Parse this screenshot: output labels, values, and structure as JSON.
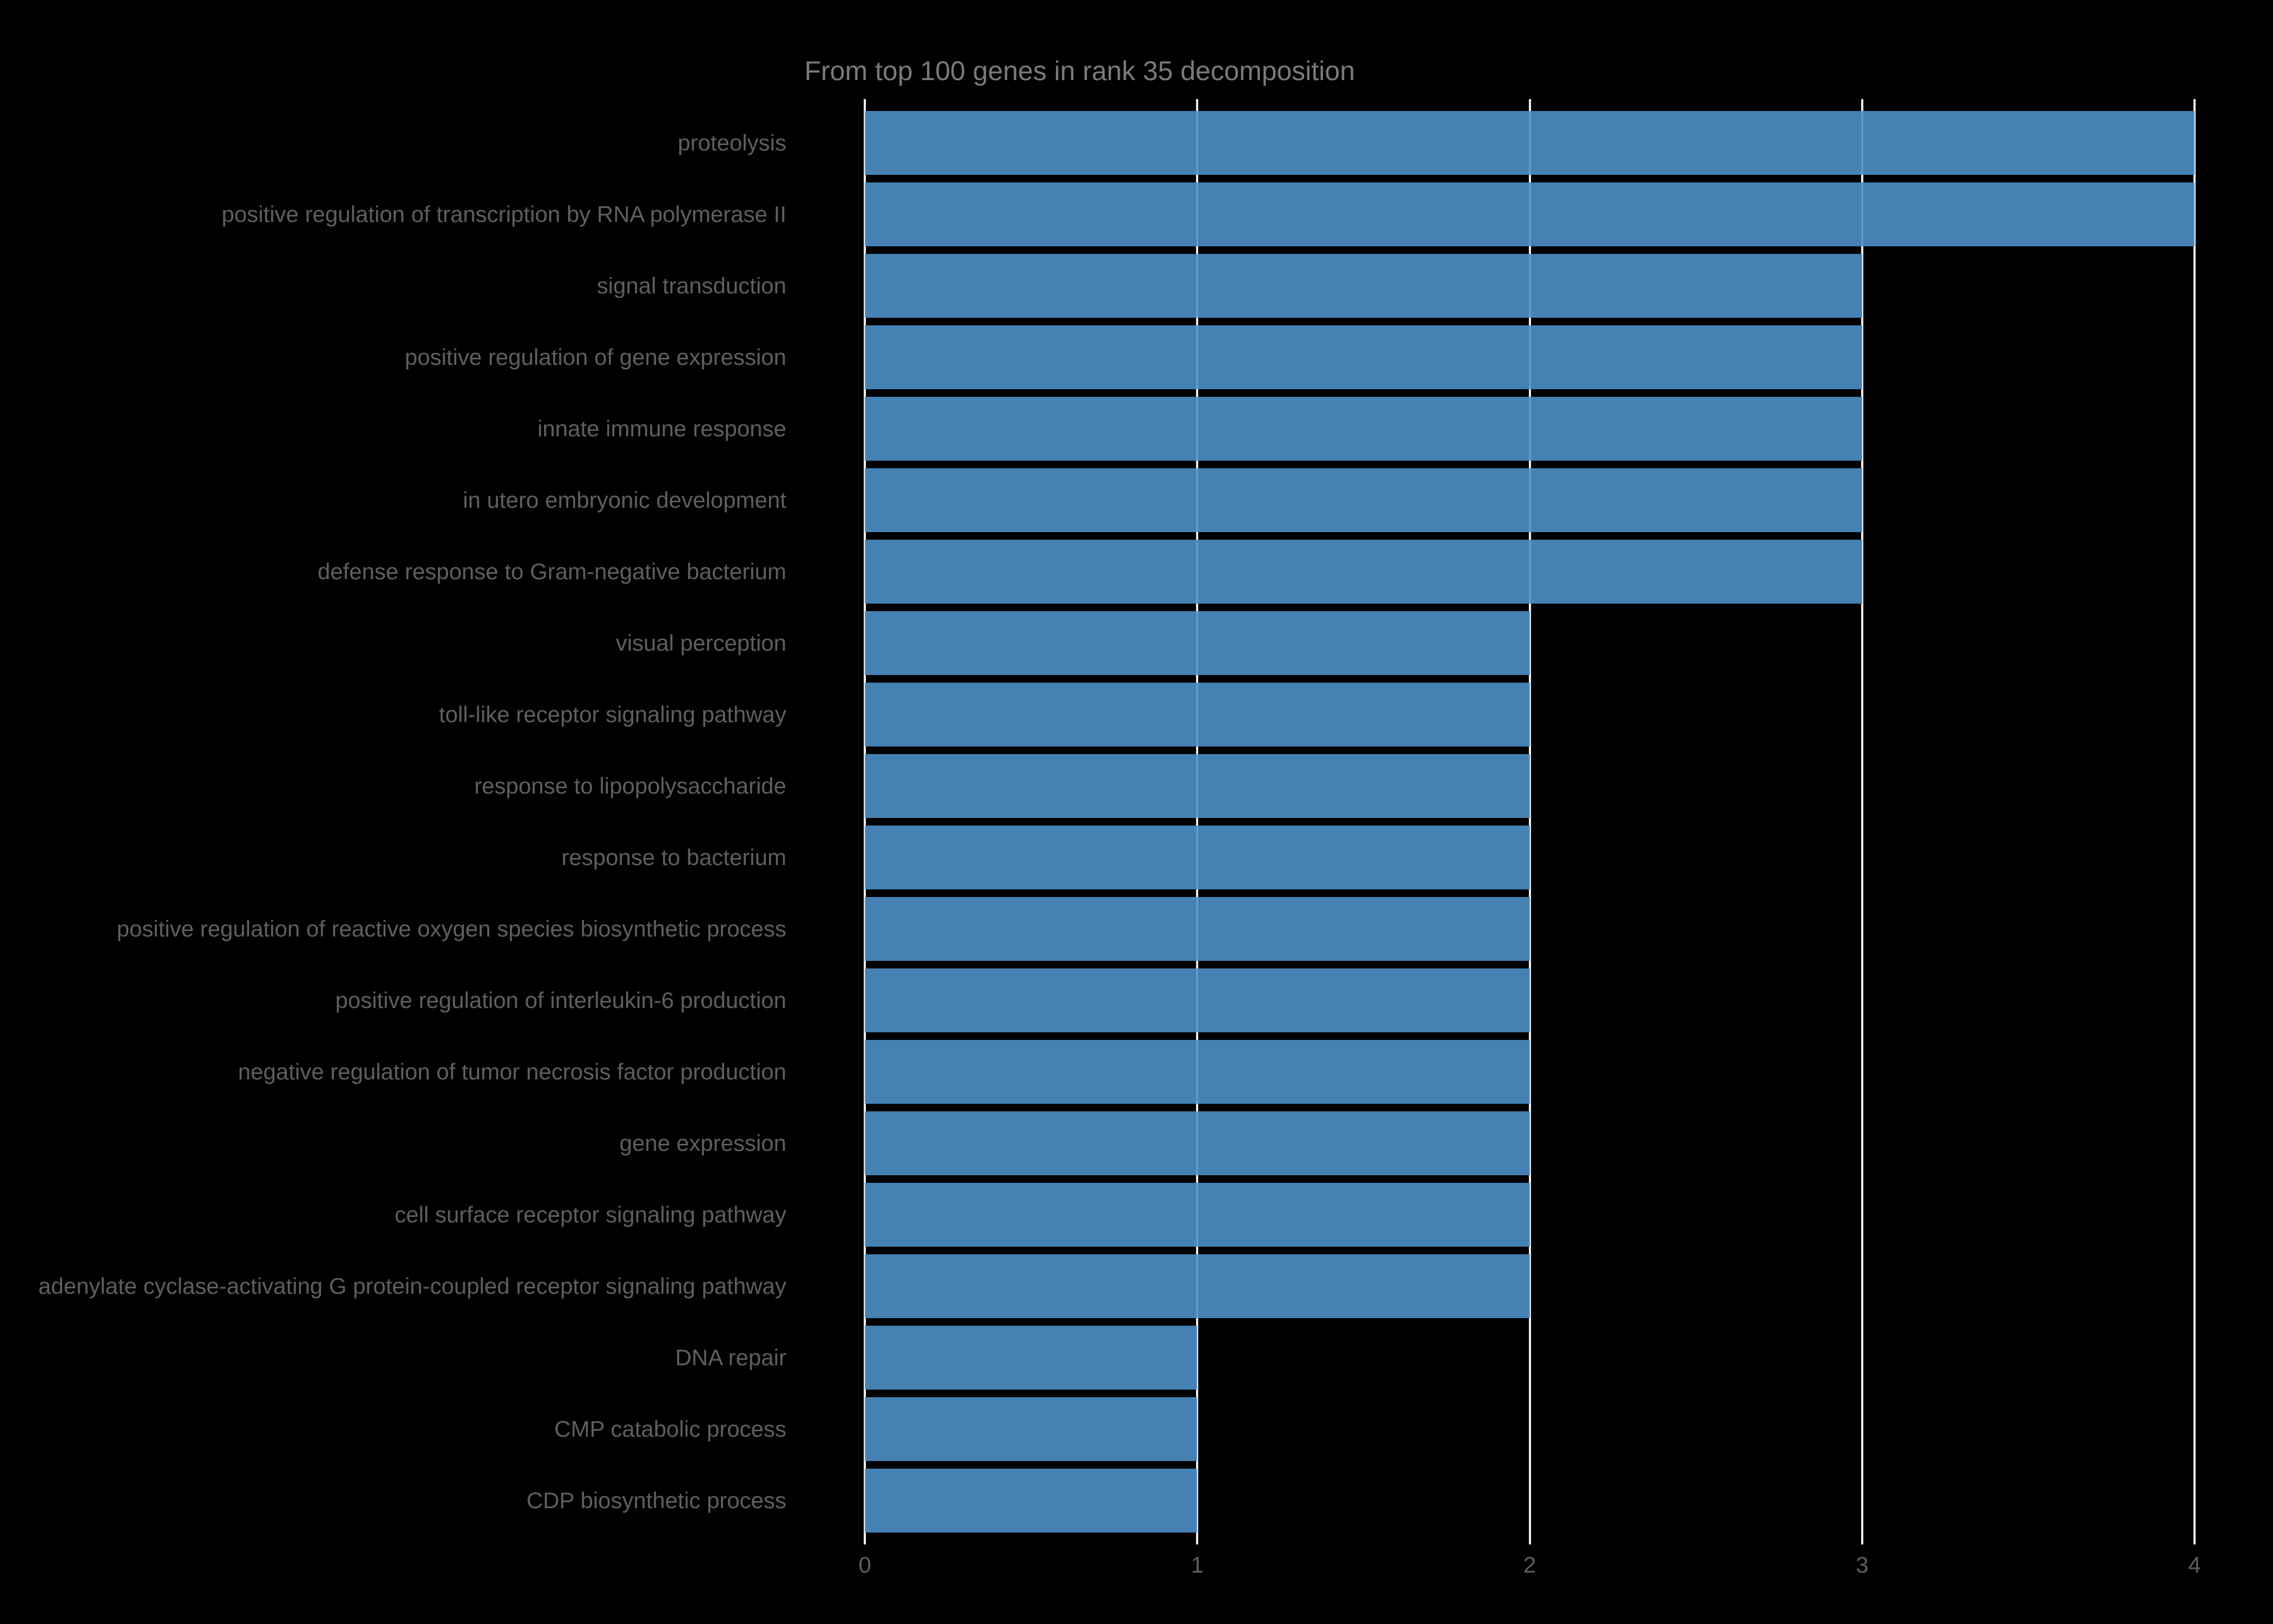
{
  "figure": {
    "background": "#000000"
  },
  "chart_data": {
    "type": "bar",
    "orientation": "horizontal",
    "title": "From top 100 genes in rank 35 decomposition",
    "xlabel": "",
    "ylabel": "",
    "categories": [
      "proteolysis",
      "positive regulation of transcription by RNA polymerase II",
      "signal transduction",
      "positive regulation of gene expression",
      "innate immune response",
      "in utero embryonic development",
      "defense response to Gram-negative bacterium",
      "visual perception",
      "toll-like receptor signaling pathway",
      "response to lipopolysaccharide",
      "response to bacterium",
      "positive regulation of reactive oxygen species biosynthetic process",
      "positive regulation of interleukin-6 production",
      "negative regulation of tumor necrosis factor production",
      "gene expression",
      "cell surface receptor signaling pathway",
      "adenylate cyclase-activating G protein-coupled receptor signaling pathway",
      "DNA repair",
      "CMP catabolic process",
      "CDP biosynthetic process"
    ],
    "values": [
      4,
      4,
      3,
      3,
      3,
      3,
      3,
      2,
      2,
      2,
      2,
      2,
      2,
      2,
      2,
      2,
      2,
      1,
      1,
      1
    ],
    "xlim": [
      0,
      4
    ],
    "xticks": [
      "0",
      "1",
      "2",
      "3",
      "4"
    ],
    "grid": true,
    "legend": false,
    "colors": {
      "bar": "#4682b4",
      "grid": "#ededed",
      "title": "#7a7a7a",
      "tick_label": "#5f5f5f",
      "category_label": "#5f5f5f",
      "background": "#000000"
    }
  }
}
